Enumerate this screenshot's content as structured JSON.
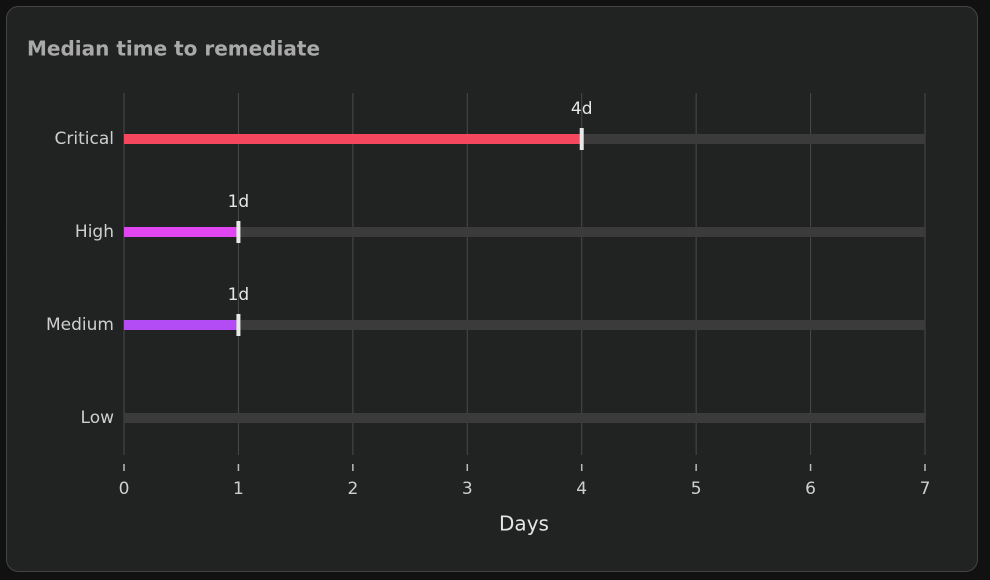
{
  "chart_data": {
    "type": "bar",
    "orientation": "horizontal",
    "title": "Median time to remediate",
    "categories": [
      "Critical",
      "High",
      "Medium",
      "Low"
    ],
    "values": [
      4,
      1,
      1,
      null
    ],
    "value_labels": [
      "4d",
      "1d",
      "1d",
      null
    ],
    "colors": [
      "#f5475d",
      "#df45f0",
      "#b44cf5",
      "#b44cf5"
    ],
    "track_color": "#3b3b3b",
    "x_label": "Days",
    "xlim": [
      0,
      7
    ],
    "xticks": [
      0,
      1,
      2,
      3,
      4,
      5,
      6,
      7
    ],
    "grid": true
  }
}
